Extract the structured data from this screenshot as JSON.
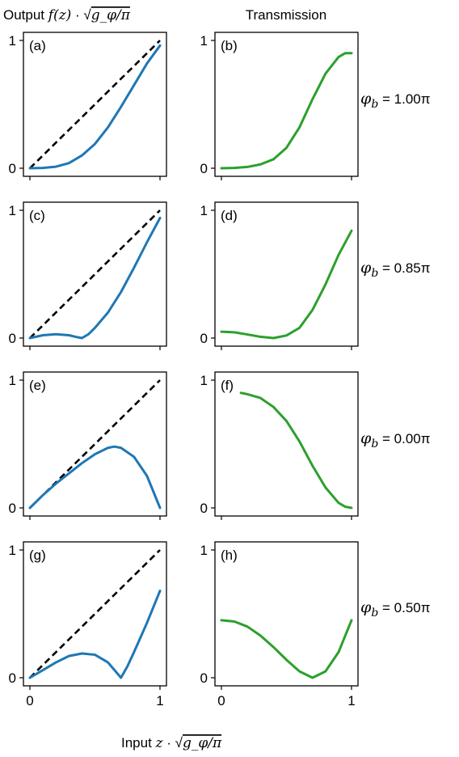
{
  "figure": {
    "column_titles": {
      "left_prefix": "Output ",
      "left_math": "f(z)",
      "right": "Transmission"
    },
    "xlabel": {
      "prefix": "Input ",
      "math": "z"
    },
    "scale_factor_math": "g_φ/π"
  },
  "chart_data": [
    {
      "type": "line",
      "panel": "(a)",
      "title": "",
      "xlim": [
        0,
        1
      ],
      "ylim": [
        0,
        1
      ],
      "xticks": [],
      "yticks": [
        "0",
        "1"
      ],
      "series": [
        {
          "style": "dashed",
          "color": "#000000",
          "x": [
            0,
            1
          ],
          "y": [
            0,
            1
          ]
        },
        {
          "color": "#1f77b4",
          "x": [
            0,
            0.1,
            0.2,
            0.3,
            0.4,
            0.5,
            0.6,
            0.7,
            0.8,
            0.9,
            1.0
          ],
          "y": [
            0,
            0.002,
            0.012,
            0.04,
            0.1,
            0.19,
            0.32,
            0.48,
            0.65,
            0.82,
            0.96
          ]
        }
      ]
    },
    {
      "type": "line",
      "panel": "(b)",
      "title": "",
      "xlim": [
        0,
        1
      ],
      "ylim": [
        0,
        1
      ],
      "xticks": [],
      "yticks": [
        "0",
        "1"
      ],
      "series": [
        {
          "color": "#2ca02c",
          "x": [
            0,
            0.1,
            0.2,
            0.3,
            0.4,
            0.5,
            0.6,
            0.7,
            0.8,
            0.9,
            0.95,
            1.0
          ],
          "y": [
            0,
            0.002,
            0.01,
            0.03,
            0.07,
            0.16,
            0.32,
            0.54,
            0.74,
            0.87,
            0.9,
            0.9
          ]
        }
      ]
    },
    {
      "type": "line",
      "panel": "(c)",
      "title": "",
      "xlim": [
        0,
        1
      ],
      "ylim": [
        0,
        1
      ],
      "xticks": [],
      "yticks": [
        "0",
        "1"
      ],
      "series": [
        {
          "style": "dashed",
          "color": "#000000",
          "x": [
            0,
            1
          ],
          "y": [
            0,
            1
          ]
        },
        {
          "color": "#1f77b4",
          "x": [
            0,
            0.1,
            0.2,
            0.3,
            0.35,
            0.4,
            0.45,
            0.5,
            0.6,
            0.7,
            0.8,
            0.9,
            1.0
          ],
          "y": [
            0,
            0.022,
            0.03,
            0.022,
            0.01,
            0,
            0.03,
            0.08,
            0.2,
            0.36,
            0.55,
            0.75,
            0.94
          ]
        }
      ]
    },
    {
      "type": "line",
      "panel": "(d)",
      "title": "",
      "xlim": [
        0,
        1
      ],
      "ylim": [
        0,
        1
      ],
      "xticks": [],
      "yticks": [
        "0",
        "1"
      ],
      "series": [
        {
          "color": "#2ca02c",
          "x": [
            0,
            0.1,
            0.2,
            0.3,
            0.4,
            0.5,
            0.6,
            0.7,
            0.8,
            0.9,
            1.0
          ],
          "y": [
            0.05,
            0.045,
            0.028,
            0.01,
            0,
            0.02,
            0.08,
            0.22,
            0.42,
            0.65,
            0.84
          ]
        }
      ]
    },
    {
      "type": "line",
      "panel": "(e)",
      "title": "",
      "xlim": [
        0,
        1
      ],
      "ylim": [
        0,
        1
      ],
      "xticks": [],
      "yticks": [
        "0",
        "1"
      ],
      "series": [
        {
          "style": "dashed",
          "color": "#000000",
          "x": [
            0,
            1
          ],
          "y": [
            0,
            1
          ]
        },
        {
          "color": "#1f77b4",
          "x": [
            0,
            0.1,
            0.2,
            0.3,
            0.4,
            0.5,
            0.6,
            0.65,
            0.7,
            0.8,
            0.9,
            1.0
          ],
          "y": [
            0,
            0.1,
            0.19,
            0.27,
            0.35,
            0.42,
            0.47,
            0.48,
            0.47,
            0.4,
            0.25,
            0
          ]
        }
      ]
    },
    {
      "type": "line",
      "panel": "(f)",
      "title": "",
      "xlim": [
        0,
        1
      ],
      "ylim": [
        0,
        1
      ],
      "xticks": [],
      "yticks": [
        "0",
        "1"
      ],
      "series": [
        {
          "color": "#2ca02c",
          "x": [
            0.15,
            0.2,
            0.3,
            0.4,
            0.5,
            0.6,
            0.7,
            0.8,
            0.9,
            0.95,
            1.0
          ],
          "y": [
            0.9,
            0.89,
            0.86,
            0.79,
            0.68,
            0.52,
            0.33,
            0.16,
            0.04,
            0.01,
            0
          ]
        }
      ]
    },
    {
      "type": "line",
      "panel": "(g)",
      "title": "",
      "xlim": [
        0,
        1
      ],
      "ylim": [
        0,
        1
      ],
      "xticks": [
        "0",
        "1"
      ],
      "yticks": [
        "0",
        "1"
      ],
      "series": [
        {
          "style": "dashed",
          "color": "#000000",
          "x": [
            0,
            1
          ],
          "y": [
            0,
            1
          ]
        },
        {
          "color": "#1f77b4",
          "x": [
            0,
            0.1,
            0.2,
            0.3,
            0.4,
            0.5,
            0.6,
            0.65,
            0.7,
            0.75,
            0.8,
            0.9,
            1.0
          ],
          "y": [
            0,
            0.06,
            0.12,
            0.17,
            0.19,
            0.18,
            0.12,
            0.06,
            0,
            0.09,
            0.2,
            0.43,
            0.68
          ]
        }
      ]
    },
    {
      "type": "line",
      "panel": "(h)",
      "title": "",
      "xlim": [
        0,
        1
      ],
      "ylim": [
        0,
        1
      ],
      "xticks": [
        "0",
        "1"
      ],
      "yticks": [
        "0",
        "1"
      ],
      "series": [
        {
          "color": "#2ca02c",
          "x": [
            0,
            0.1,
            0.2,
            0.3,
            0.4,
            0.5,
            0.6,
            0.7,
            0.8,
            0.9,
            1.0
          ],
          "y": [
            0.45,
            0.44,
            0.4,
            0.33,
            0.24,
            0.14,
            0.05,
            0,
            0.05,
            0.2,
            0.45
          ]
        }
      ]
    }
  ],
  "row_labels": [
    {
      "symbol": "φ",
      "subscript": "b",
      "value": " = 1.00π"
    },
    {
      "symbol": "φ",
      "subscript": "b",
      "value": " = 0.85π"
    },
    {
      "symbol": "φ",
      "subscript": "b",
      "value": " = 0.00π"
    },
    {
      "symbol": "φ",
      "subscript": "b",
      "value": " = 0.50π"
    }
  ]
}
